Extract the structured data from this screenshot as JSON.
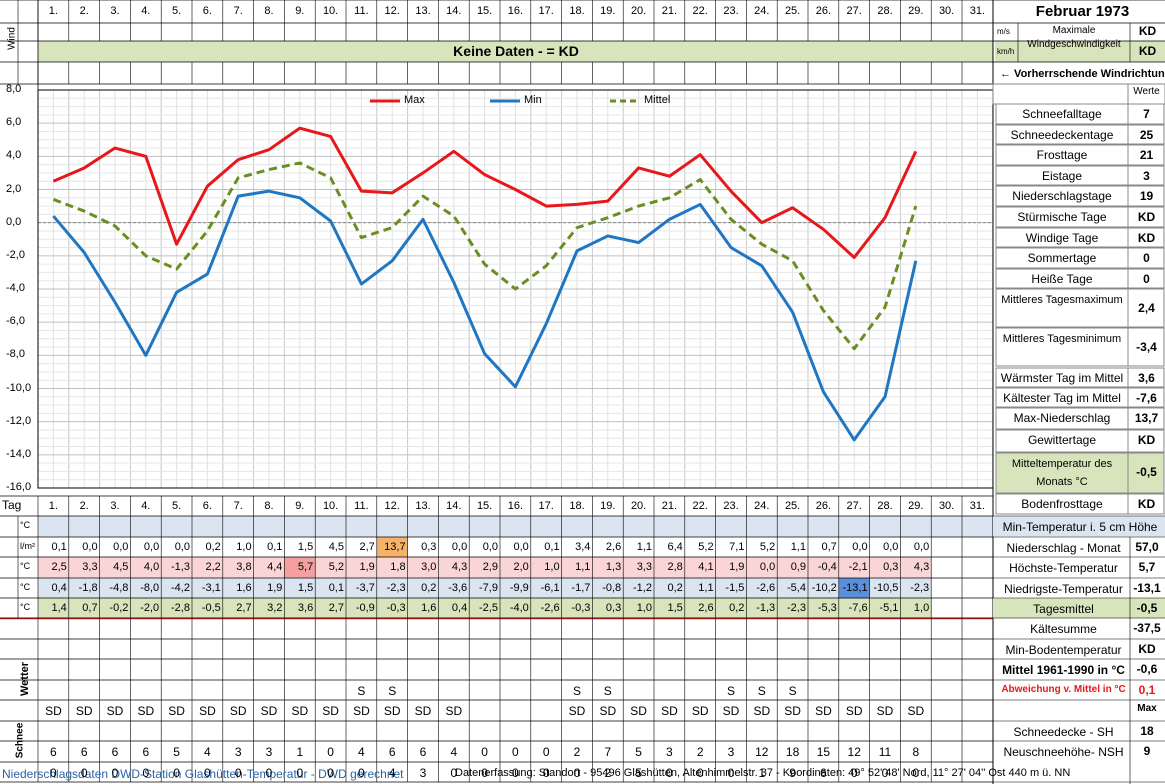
{
  "header": {
    "title": "Februar 1973",
    "wind_label": "Wind",
    "unit_ms": "m/s",
    "unit_kmh": "km/h",
    "max_wind_label": "Maximale Windgeschwindigkeit",
    "max_wind_ms": "KD",
    "max_wind_kmh": "KD",
    "no_data_banner": "Keine Daten -  = KD",
    "prevailing_wind": "← Vorherrschende Windrichtung",
    "werte": "Werte"
  },
  "days": [
    "1.",
    "2.",
    "3.",
    "4.",
    "5.",
    "6.",
    "7.",
    "8.",
    "9.",
    "10.",
    "11.",
    "12.",
    "13.",
    "14.",
    "15.",
    "16.",
    "17.",
    "18.",
    "19.",
    "20.",
    "21.",
    "22.",
    "23.",
    "24.",
    "25.",
    "26.",
    "27.",
    "28.",
    "29.",
    "30.",
    "31."
  ],
  "chart_data": {
    "type": "line",
    "x": [
      1,
      2,
      3,
      4,
      5,
      6,
      7,
      8,
      9,
      10,
      11,
      12,
      13,
      14,
      15,
      16,
      17,
      18,
      19,
      20,
      21,
      22,
      23,
      24,
      25,
      26,
      27,
      28,
      29
    ],
    "ylim": [
      -16,
      8
    ],
    "yticks": [
      "8,0",
      "6,0",
      "4,0",
      "2,0",
      "0,0",
      "-2,0",
      "-4,0",
      "-6,0",
      "-8,0",
      "-10,0",
      "-12,0",
      "-14,0",
      "-16,0"
    ],
    "legend_position": "top",
    "grid": true,
    "series": [
      {
        "name": "Max",
        "color": "#e8171b",
        "style": "solid",
        "values": [
          2.5,
          3.3,
          4.5,
          4.0,
          -1.3,
          2.2,
          3.8,
          4.4,
          5.7,
          5.2,
          1.9,
          1.8,
          3.0,
          4.3,
          2.9,
          2.0,
          1.0,
          1.1,
          1.3,
          3.3,
          2.8,
          4.1,
          1.9,
          0.0,
          0.9,
          -0.4,
          -2.1,
          0.3,
          4.3
        ]
      },
      {
        "name": "Min",
        "color": "#1f77c3",
        "style": "solid",
        "values": [
          0.4,
          -1.8,
          -4.8,
          -8.0,
          -4.2,
          -3.1,
          1.6,
          1.9,
          1.5,
          0.1,
          -3.7,
          -2.3,
          0.2,
          -3.6,
          -7.9,
          -9.9,
          -6.1,
          -1.7,
          -0.8,
          -1.2,
          0.2,
          1.1,
          -1.5,
          -2.6,
          -5.4,
          -10.2,
          -13.1,
          -10.5,
          -2.3
        ]
      },
      {
        "name": "Mittel",
        "color": "#6b8e23",
        "style": "dashed",
        "values": [
          1.4,
          0.7,
          -0.2,
          -2.0,
          -2.8,
          -0.5,
          2.7,
          3.2,
          3.6,
          2.7,
          -0.9,
          -0.3,
          1.6,
          0.4,
          -2.5,
          -4.0,
          -2.6,
          -0.3,
          0.3,
          1.0,
          1.5,
          2.6,
          0.2,
          -1.3,
          -2.3,
          -5.3,
          -7.6,
          -5.1,
          1.0
        ]
      }
    ]
  },
  "table": {
    "tag_label": "Tag",
    "unit_c": "°C",
    "unit_lm2": "l/m²",
    "wetter_label": "Wetter",
    "schnee_label": "Schnee",
    "niederschlag": [
      "0,1",
      "0,0",
      "0,0",
      "0,0",
      "0,0",
      "0,2",
      "1,0",
      "0,1",
      "1,5",
      "4,5",
      "2,7",
      "13,7",
      "0,3",
      "0,0",
      "0,0",
      "0,0",
      "0,1",
      "3,4",
      "2,6",
      "1,1",
      "6,4",
      "5,2",
      "7,1",
      "5,2",
      "1,1",
      "0,7",
      "0,0",
      "0,0",
      "0,0"
    ],
    "max": [
      "2,5",
      "3,3",
      "4,5",
      "4,0",
      "-1,3",
      "2,2",
      "3,8",
      "4,4",
      "5,7",
      "5,2",
      "1,9",
      "1,8",
      "3,0",
      "4,3",
      "2,9",
      "2,0",
      "1,0",
      "1,1",
      "1,3",
      "3,3",
      "2,8",
      "4,1",
      "1,9",
      "0,0",
      "0,9",
      "-0,4",
      "-2,1",
      "0,3",
      "4,3"
    ],
    "min": [
      "0,4",
      "-1,8",
      "-4,8",
      "-8,0",
      "-4,2",
      "-3,1",
      "1,6",
      "1,9",
      "1,5",
      "0,1",
      "-3,7",
      "-2,3",
      "0,2",
      "-3,6",
      "-7,9",
      "-9,9",
      "-6,1",
      "-1,7",
      "-0,8",
      "-1,2",
      "0,2",
      "1,1",
      "-1,5",
      "-2,6",
      "-5,4",
      "-10,2",
      "-13,1",
      "-10,5",
      "-2,3"
    ],
    "mittel": [
      "1,4",
      "0,7",
      "-0,2",
      "-2,0",
      "-2,8",
      "-0,5",
      "2,7",
      "3,2",
      "3,6",
      "2,7",
      "-0,9",
      "-0,3",
      "1,6",
      "0,4",
      "-2,5",
      "-4,0",
      "-2,6",
      "-0,3",
      "0,3",
      "1,0",
      "1,5",
      "2,6",
      "0,2",
      "-1,3",
      "-2,3",
      "-5,3",
      "-7,6",
      "-5,1",
      "1,0"
    ],
    "wetter_s": [
      "",
      "",
      "",
      "",
      "",
      "",
      "",
      "",
      "",
      "",
      "S",
      "S",
      "",
      "",
      "",
      "",
      "",
      "S",
      "S",
      "",
      "",
      "",
      "S",
      "S",
      "S",
      "",
      "",
      "",
      ""
    ],
    "wetter_sd": [
      "SD",
      "SD",
      "SD",
      "SD",
      "SD",
      "SD",
      "SD",
      "SD",
      "SD",
      "SD",
      "SD",
      "SD",
      "SD",
      "SD",
      "",
      "",
      "",
      "SD",
      "SD",
      "SD",
      "SD",
      "SD",
      "SD",
      "SD",
      "SD",
      "SD",
      "SD",
      "SD",
      "SD"
    ],
    "schneedecke": [
      "6",
      "6",
      "6",
      "6",
      "5",
      "4",
      "3",
      "3",
      "1",
      "0",
      "4",
      "6",
      "6",
      "4",
      "0",
      "0",
      "0",
      "2",
      "7",
      "5",
      "3",
      "2",
      "3",
      "12",
      "18",
      "15",
      "12",
      "11",
      "8"
    ],
    "neuschnee": [
      "0",
      "0",
      "0",
      "0",
      "0",
      "0",
      "0",
      "0",
      "0",
      "0",
      "0",
      "4",
      "3",
      "0",
      "0",
      "0",
      "0",
      "0",
      "2",
      "5",
      "0",
      "0",
      "0",
      "1",
      "9",
      "6",
      "0",
      "0",
      "0"
    ]
  },
  "stats": [
    {
      "label": "Schneefalltage",
      "value": "7"
    },
    {
      "label": "Schneedeckentage",
      "value": "25"
    },
    {
      "label": "Frosttage",
      "value": "21"
    },
    {
      "label": "Eistage",
      "value": "3"
    },
    {
      "label": "Niederschlagstage",
      "value": "19"
    },
    {
      "label": "Stürmische Tage",
      "value": "KD"
    },
    {
      "label": "Windige Tage",
      "value": "KD"
    },
    {
      "label": "Sommertage",
      "value": "0"
    },
    {
      "label": "Heiße Tage",
      "value": "0"
    },
    {
      "label": "Mittleres Tagesmaximum",
      "value": "2,4"
    },
    {
      "label": "Mittleres Tagesminimum",
      "value": "-3,4"
    },
    {
      "label": "Wärmster Tag im Mittel",
      "value": "3,6"
    },
    {
      "label": "Kältester Tag im Mittel",
      "value": "-7,6"
    },
    {
      "label": "Max-Niederschlag",
      "value": "13,7"
    },
    {
      "label": "Gewittertage",
      "value": "KD"
    },
    {
      "label": "Mitteltemperatur des Monats °C",
      "value": "-0,5"
    },
    {
      "label": "Bodenfrosttage",
      "value": "KD"
    }
  ],
  "right_table": [
    {
      "label": "Min-Temperatur i. 5 cm Höhe",
      "value": ""
    },
    {
      "label": "Niederschlag - Monat",
      "value": "57,0"
    },
    {
      "label": "Höchste-Temperatur",
      "value": "5,7"
    },
    {
      "label": "Niedrigste-Temperatur",
      "value": "-13,1"
    },
    {
      "label": "Tagesmittel",
      "value": "-0,5"
    },
    {
      "label": "Kältesumme",
      "value": "-37,5"
    },
    {
      "label": "Min-Bodentemperatur",
      "value": "KD"
    },
    {
      "label": "Mittel 1961-1990 in °C",
      "value": "-0,6"
    },
    {
      "label": "Abweichung v. Mittel in °C",
      "value": "0,1"
    },
    {
      "label": "",
      "value": "Max"
    },
    {
      "label": "Schneedecke -   SH",
      "value": "18"
    },
    {
      "label": "Neuschneehöhe- NSH",
      "value": "9"
    }
  ],
  "footer": {
    "left": "Niederschlagsdaten DWD-Station Glashütten-Temperatur -  DWD gerechnet",
    "right": "Datenerfassung: Standort -  95496  Glashütten, Altenhimmelstr. 37 - Koordinaten: 49° 52' 48' Nord,  11° 27' 04'' Ost  440 m ü. NN"
  },
  "colors": {
    "max_cell_bg": "#f9d6d5",
    "min_cell_bg": "#dbe5f1",
    "mittel_bg": "#d8e4bc",
    "banner_bg": "#d8e4bc",
    "max_highlight": "#f4a0a0",
    "min_highlight": "#5b8fd9",
    "precip_highlight": "#f6b26b"
  }
}
